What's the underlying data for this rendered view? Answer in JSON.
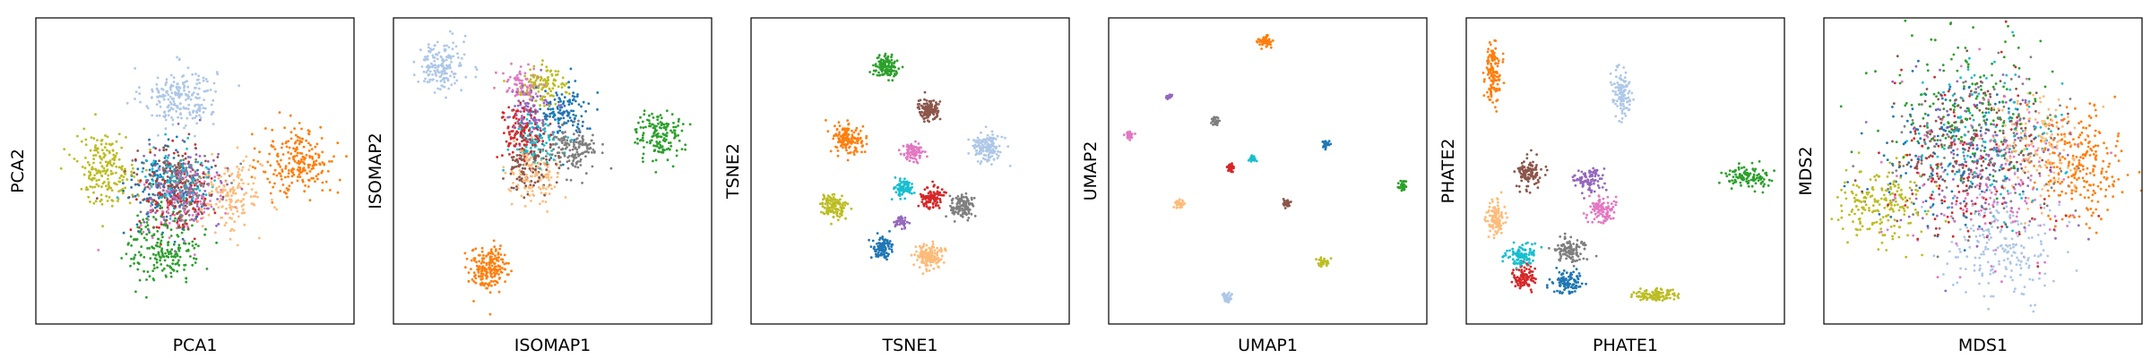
{
  "palette": {
    "blue": "#1f77b4",
    "light_blue": "#aec7e8",
    "orange": "#ff7f0e",
    "light_orange": "#ffbb78",
    "green": "#2ca02c",
    "red": "#d62728",
    "purple": "#9467bd",
    "brown": "#8c564b",
    "pink": "#e377c2",
    "gray": "#7f7f7f",
    "olive": "#bcbd22",
    "cyan": "#17becf"
  },
  "chart_data": [
    {
      "type": "scatter",
      "title": "",
      "xlabel": "PCA1",
      "ylabel": "PCA2",
      "xlim": [
        0,
        100
      ],
      "ylim": [
        0,
        100
      ],
      "ticks": "none",
      "grid": false,
      "legend": "none",
      "clusters": [
        {
          "color": "light_blue",
          "x": 45,
          "y": 75,
          "sx": 6,
          "sy": 5,
          "n": 220
        },
        {
          "color": "orange",
          "x": 84,
          "y": 53,
          "sx": 6,
          "sy": 6,
          "n": 220
        },
        {
          "color": "olive",
          "x": 21,
          "y": 51,
          "sx": 5,
          "sy": 6,
          "n": 200
        },
        {
          "color": "green",
          "x": 40,
          "y": 24,
          "sx": 6,
          "sy": 6,
          "n": 200
        },
        {
          "color": "light_orange",
          "x": 62,
          "y": 41,
          "sx": 5,
          "sy": 6,
          "n": 150
        },
        {
          "color": "blue",
          "x": 40,
          "y": 45,
          "sx": 6,
          "sy": 7,
          "n": 140
        },
        {
          "color": "red",
          "x": 44,
          "y": 42,
          "sx": 6,
          "sy": 7,
          "n": 120
        },
        {
          "color": "purple",
          "x": 47,
          "y": 44,
          "sx": 7,
          "sy": 7,
          "n": 110
        },
        {
          "color": "pink",
          "x": 46,
          "y": 40,
          "sx": 7,
          "sy": 6,
          "n": 110
        },
        {
          "color": "brown",
          "x": 43,
          "y": 46,
          "sx": 6,
          "sy": 6,
          "n": 110
        },
        {
          "color": "gray",
          "x": 46,
          "y": 44,
          "sx": 6,
          "sy": 6,
          "n": 110
        },
        {
          "color": "cyan",
          "x": 44,
          "y": 47,
          "sx": 6,
          "sy": 6,
          "n": 110
        }
      ]
    },
    {
      "type": "scatter",
      "title": "",
      "xlabel": "ISOMAP1",
      "ylabel": "ISOMAP2",
      "xlim": [
        0,
        100
      ],
      "ylim": [
        0,
        100
      ],
      "ticks": "none",
      "grid": false,
      "legend": "none",
      "clusters": [
        {
          "color": "light_blue",
          "x": 14,
          "y": 85,
          "sx": 4,
          "sy": 4,
          "n": 170
        },
        {
          "color": "orange",
          "x": 29,
          "y": 17,
          "sx": 3,
          "sy": 4,
          "n": 200
        },
        {
          "color": "green",
          "x": 85,
          "y": 62,
          "sx": 4,
          "sy": 4,
          "n": 150
        },
        {
          "color": "gray",
          "x": 57,
          "y": 58,
          "sx": 4,
          "sy": 4,
          "n": 150
        },
        {
          "color": "blue",
          "x": 53,
          "y": 70,
          "sx": 4,
          "sy": 5,
          "n": 130
        },
        {
          "color": "olive",
          "x": 48,
          "y": 79,
          "sx": 4,
          "sy": 3,
          "n": 110
        },
        {
          "color": "pink",
          "x": 40,
          "y": 79,
          "sx": 3,
          "sy": 3,
          "n": 90
        },
        {
          "color": "purple",
          "x": 43,
          "y": 70,
          "sx": 4,
          "sy": 4,
          "n": 90
        },
        {
          "color": "red",
          "x": 40,
          "y": 64,
          "sx": 4,
          "sy": 5,
          "n": 120
        },
        {
          "color": "brown",
          "x": 42,
          "y": 52,
          "sx": 4,
          "sy": 5,
          "n": 130
        },
        {
          "color": "light_orange",
          "x": 44,
          "y": 48,
          "sx": 4,
          "sy": 5,
          "n": 120
        },
        {
          "color": "cyan",
          "x": 45,
          "y": 60,
          "sx": 4,
          "sy": 4,
          "n": 90
        }
      ]
    },
    {
      "type": "scatter",
      "title": "",
      "xlabel": "TSNE1",
      "ylabel": "TSNE2",
      "xlim": [
        0,
        100
      ],
      "ylim": [
        0,
        100
      ],
      "ticks": "none",
      "grid": false,
      "legend": "none",
      "clusters": [
        {
          "color": "green",
          "x": 42,
          "y": 85,
          "sx": 1.8,
          "sy": 1.8,
          "n": 120
        },
        {
          "color": "brown",
          "x": 56,
          "y": 71,
          "sx": 1.8,
          "sy": 1.8,
          "n": 120
        },
        {
          "color": "orange",
          "x": 30,
          "y": 61,
          "sx": 2.5,
          "sy": 2.5,
          "n": 150
        },
        {
          "color": "pink",
          "x": 51,
          "y": 56,
          "sx": 1.6,
          "sy": 1.6,
          "n": 90
        },
        {
          "color": "light_blue",
          "x": 75,
          "y": 58,
          "sx": 2.4,
          "sy": 2.4,
          "n": 150
        },
        {
          "color": "cyan",
          "x": 48,
          "y": 44,
          "sx": 1.5,
          "sy": 1.5,
          "n": 80
        },
        {
          "color": "red",
          "x": 57,
          "y": 41,
          "sx": 1.8,
          "sy": 1.8,
          "n": 110
        },
        {
          "color": "gray",
          "x": 67,
          "y": 38,
          "sx": 2.0,
          "sy": 2.0,
          "n": 120
        },
        {
          "color": "olive",
          "x": 25,
          "y": 38,
          "sx": 2.0,
          "sy": 2.0,
          "n": 120
        },
        {
          "color": "purple",
          "x": 47,
          "y": 33,
          "sx": 1.0,
          "sy": 1.0,
          "n": 40
        },
        {
          "color": "blue",
          "x": 41,
          "y": 24,
          "sx": 1.8,
          "sy": 1.8,
          "n": 110
        },
        {
          "color": "light_orange",
          "x": 56,
          "y": 21,
          "sx": 2.2,
          "sy": 2.2,
          "n": 140
        }
      ]
    },
    {
      "type": "scatter",
      "title": "",
      "xlabel": "UMAP1",
      "ylabel": "UMAP2",
      "xlim": [
        0,
        100
      ],
      "ylim": [
        0,
        100
      ],
      "ticks": "none",
      "grid": false,
      "legend": "none",
      "clusters": [
        {
          "color": "orange",
          "x": 49,
          "y": 94,
          "sx": 1.0,
          "sy": 1.0,
          "n": 60
        },
        {
          "color": "purple",
          "x": 18,
          "y": 75,
          "sx": 0.5,
          "sy": 0.5,
          "n": 20
        },
        {
          "color": "gray",
          "x": 33,
          "y": 67,
          "sx": 0.7,
          "sy": 0.7,
          "n": 30
        },
        {
          "color": "pink",
          "x": 5,
          "y": 62,
          "sx": 0.7,
          "sy": 0.7,
          "n": 30
        },
        {
          "color": "blue",
          "x": 69,
          "y": 59,
          "sx": 0.7,
          "sy": 0.7,
          "n": 30
        },
        {
          "color": "cyan",
          "x": 45,
          "y": 54,
          "sx": 0.6,
          "sy": 0.6,
          "n": 25
        },
        {
          "color": "red",
          "x": 38,
          "y": 51,
          "sx": 0.7,
          "sy": 0.7,
          "n": 30
        },
        {
          "color": "green",
          "x": 94,
          "y": 45,
          "sx": 0.7,
          "sy": 0.7,
          "n": 30
        },
        {
          "color": "light_orange",
          "x": 21,
          "y": 39,
          "sx": 0.9,
          "sy": 0.9,
          "n": 35
        },
        {
          "color": "brown",
          "x": 56,
          "y": 39,
          "sx": 0.7,
          "sy": 0.7,
          "n": 30
        },
        {
          "color": "olive",
          "x": 68,
          "y": 19,
          "sx": 0.8,
          "sy": 0.8,
          "n": 35
        },
        {
          "color": "light_blue",
          "x": 37,
          "y": 7,
          "sx": 0.9,
          "sy": 0.9,
          "n": 40
        }
      ]
    },
    {
      "type": "scatter",
      "title": "",
      "xlabel": "PHATE1",
      "ylabel": "PHATE2",
      "xlim": [
        0,
        100
      ],
      "ylim": [
        0,
        100
      ],
      "ticks": "none",
      "grid": false,
      "legend": "none",
      "clusters": [
        {
          "color": "orange",
          "x": 7,
          "y": 83,
          "sx": 1.2,
          "sy": 5,
          "n": 140
        },
        {
          "color": "light_blue",
          "x": 49,
          "y": 76,
          "sx": 1.5,
          "sy": 4,
          "n": 110
        },
        {
          "color": "green",
          "x": 90,
          "y": 48,
          "sx": 4,
          "sy": 1.8,
          "n": 110
        },
        {
          "color": "brown",
          "x": 19,
          "y": 49,
          "sx": 2,
          "sy": 2.5,
          "n": 110
        },
        {
          "color": "purple",
          "x": 38,
          "y": 47,
          "sx": 3,
          "sy": 2,
          "n": 90
        },
        {
          "color": "pink",
          "x": 42,
          "y": 37,
          "sx": 2,
          "sy": 2,
          "n": 100
        },
        {
          "color": "light_orange",
          "x": 8,
          "y": 34,
          "sx": 1.5,
          "sy": 3,
          "n": 110
        },
        {
          "color": "gray",
          "x": 32,
          "y": 23,
          "sx": 2.5,
          "sy": 2,
          "n": 110
        },
        {
          "color": "cyan",
          "x": 16,
          "y": 21,
          "sx": 2.5,
          "sy": 2,
          "n": 100
        },
        {
          "color": "red",
          "x": 17,
          "y": 14,
          "sx": 2,
          "sy": 2,
          "n": 100
        },
        {
          "color": "blue",
          "x": 31,
          "y": 12,
          "sx": 2.5,
          "sy": 1.8,
          "n": 110
        },
        {
          "color": "olive",
          "x": 60,
          "y": 8,
          "sx": 3.5,
          "sy": 1,
          "n": 110
        }
      ]
    },
    {
      "type": "scatter",
      "title": "",
      "xlabel": "MDS1",
      "ylabel": "MDS2",
      "xlim": [
        0,
        100
      ],
      "ylim": [
        0,
        100
      ],
      "ticks": "none",
      "grid": false,
      "legend": "none",
      "clusters": [
        {
          "color": "orange",
          "x": 82,
          "y": 50,
          "sx": 7,
          "sy": 10,
          "n": 230
        },
        {
          "color": "olive",
          "x": 17,
          "y": 38,
          "sx": 7,
          "sy": 7,
          "n": 200
        },
        {
          "color": "light_blue",
          "x": 55,
          "y": 24,
          "sx": 9,
          "sy": 9,
          "n": 200
        },
        {
          "color": "light_orange",
          "x": 68,
          "y": 58,
          "sx": 7,
          "sy": 9,
          "n": 150
        },
        {
          "color": "green",
          "x": 45,
          "y": 70,
          "sx": 14,
          "sy": 12,
          "n": 170
        },
        {
          "color": "blue",
          "x": 40,
          "y": 56,
          "sx": 13,
          "sy": 13,
          "n": 150
        },
        {
          "color": "red",
          "x": 45,
          "y": 48,
          "sx": 14,
          "sy": 14,
          "n": 140
        },
        {
          "color": "purple",
          "x": 50,
          "y": 52,
          "sx": 14,
          "sy": 14,
          "n": 140
        },
        {
          "color": "brown",
          "x": 48,
          "y": 60,
          "sx": 14,
          "sy": 13,
          "n": 140
        },
        {
          "color": "pink",
          "x": 52,
          "y": 45,
          "sx": 14,
          "sy": 14,
          "n": 140
        },
        {
          "color": "gray",
          "x": 47,
          "y": 54,
          "sx": 14,
          "sy": 14,
          "n": 140
        },
        {
          "color": "cyan",
          "x": 50,
          "y": 62,
          "sx": 13,
          "sy": 13,
          "n": 120
        }
      ]
    }
  ]
}
